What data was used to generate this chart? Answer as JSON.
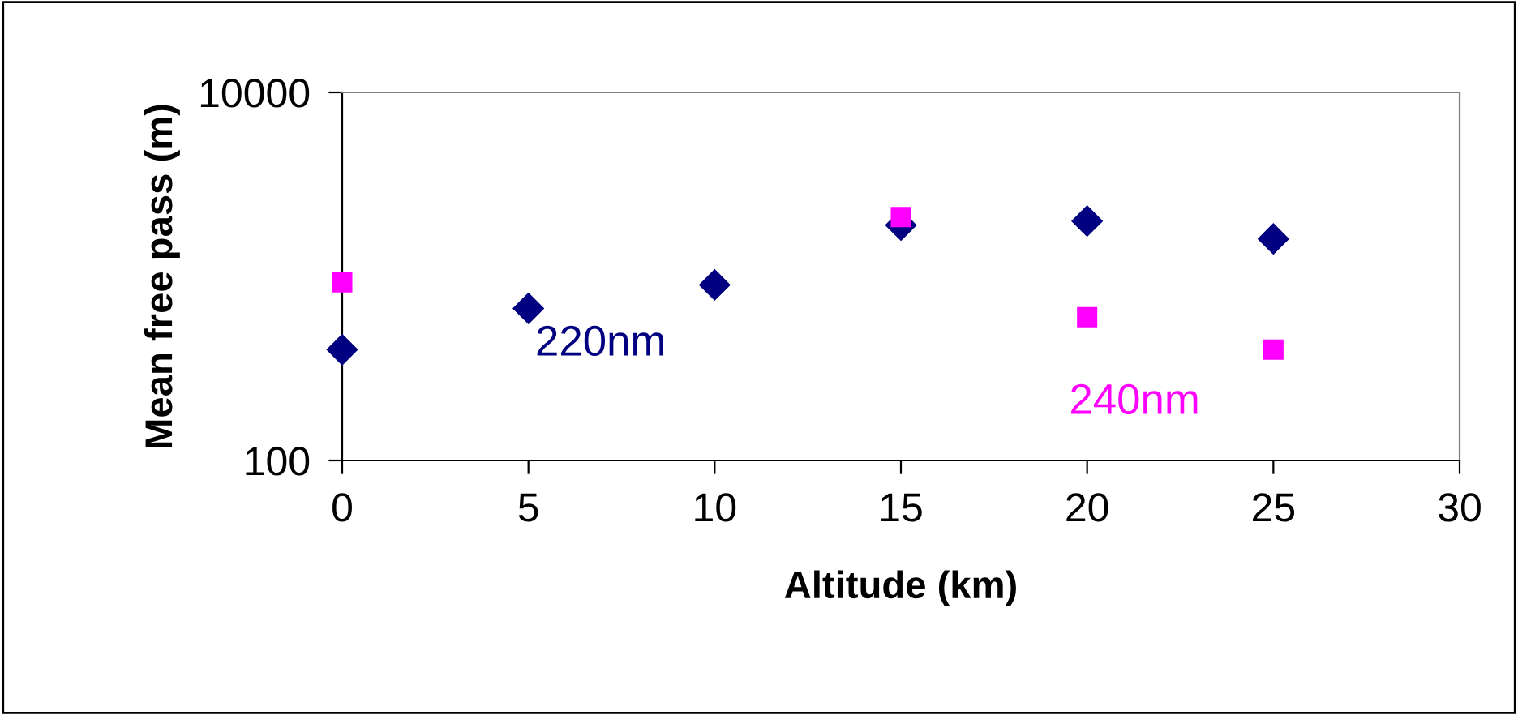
{
  "chart_data": {
    "type": "scatter",
    "xlabel": "Altitude (km)",
    "ylabel": "Mean free pass (m)",
    "x": [
      0,
      5,
      10,
      15,
      20,
      25
    ],
    "series": [
      {
        "name": "220nm",
        "color": "#000080",
        "marker": "diamond",
        "values": [
          400,
          670,
          900,
          1900,
          2000,
          1600
        ]
      },
      {
        "name": "240nm",
        "color": "#ff00ff",
        "marker": "square",
        "values": [
          930,
          null,
          null,
          2100,
          600,
          400
        ]
      }
    ],
    "log": "y",
    "xlim": [
      0,
      30
    ],
    "xticks": [
      0,
      5,
      10,
      15,
      20,
      25,
      30
    ],
    "ylim": [
      100,
      10000
    ],
    "yticks": [
      100,
      10000
    ],
    "grid": false,
    "legend": false
  }
}
